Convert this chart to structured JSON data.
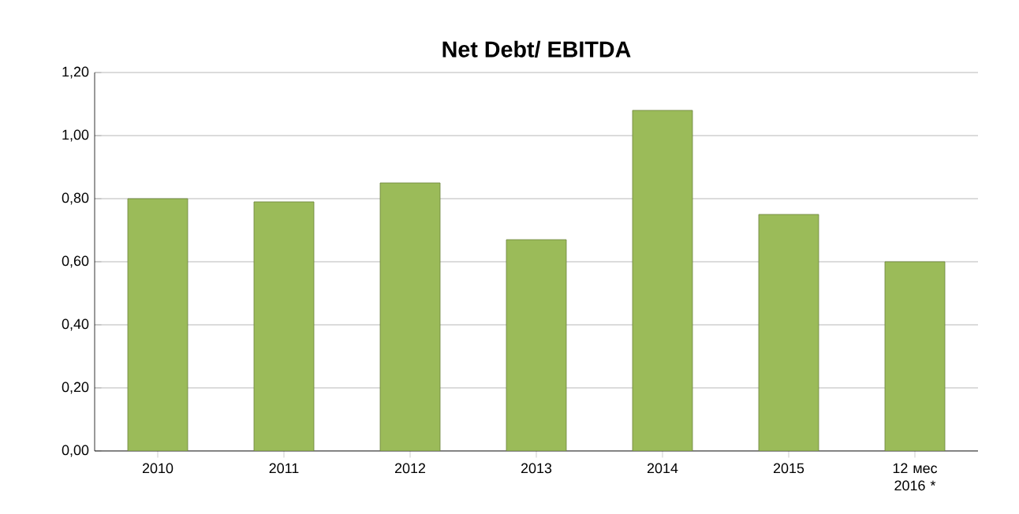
{
  "chart_data": {
    "type": "bar",
    "title": "Net Debt/ EBITDA",
    "categories": [
      "2010",
      "2011",
      "2012",
      "2013",
      "2014",
      "2015",
      "12 мес 2016 *"
    ],
    "values": [
      0.8,
      0.79,
      0.85,
      0.67,
      1.08,
      0.75,
      0.6
    ],
    "color": "#9bbb59",
    "ylim": [
      0,
      1.2
    ],
    "yticks": [
      {
        "value": 0,
        "label": "0,00"
      },
      {
        "value": 0.2,
        "label": "0,20"
      },
      {
        "value": 0.4,
        "label": "0,40"
      },
      {
        "value": 0.6,
        "label": "0,60"
      },
      {
        "value": 0.8,
        "label": "0,80"
      },
      {
        "value": 1.0,
        "label": "1,00"
      },
      {
        "value": 1.2,
        "label": "1,20"
      }
    ],
    "grid": "y"
  }
}
